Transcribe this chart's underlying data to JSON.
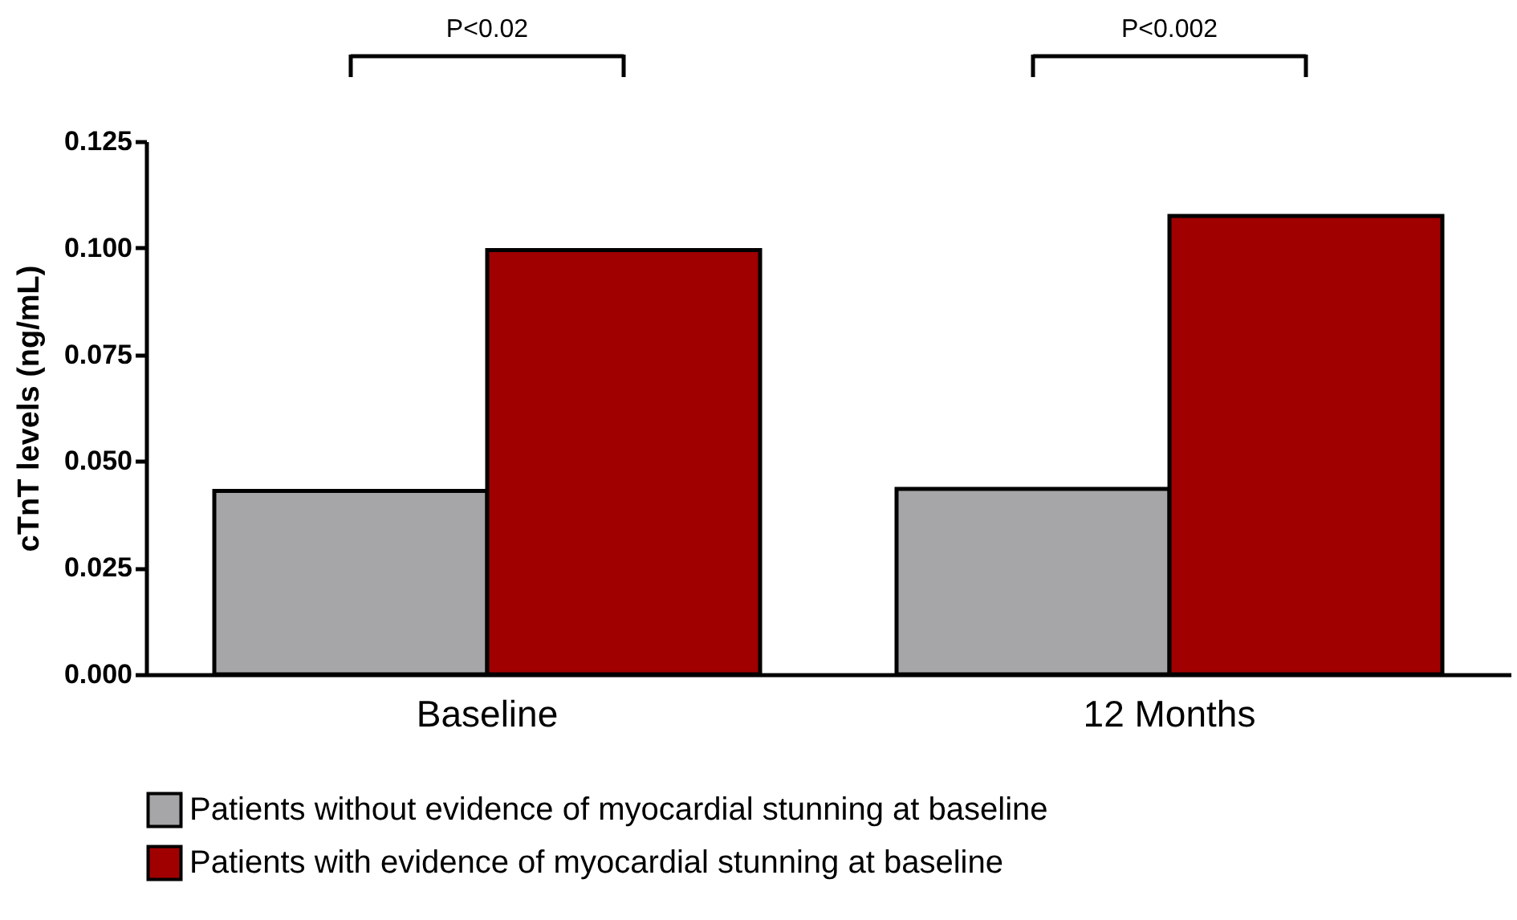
{
  "chart_data": {
    "type": "bar",
    "ylabel": "cTnT levels (ng/mL)",
    "categories": [
      "Baseline",
      "12 Months"
    ],
    "series": [
      {
        "name": "Patients without evidence of myocardial stunning at baseline",
        "color": "#a6a6a8",
        "values": [
          0.043,
          0.0435
        ]
      },
      {
        "name": "Patients with evidence of myocardial stunning at baseline",
        "color": "#a00000",
        "values": [
          0.0995,
          0.1075
        ]
      }
    ],
    "ylim": [
      0,
      0.125
    ],
    "yticks": [
      {
        "value": 0,
        "label": "0.000"
      },
      {
        "value": 0.025,
        "label": "0.025"
      },
      {
        "value": 0.05,
        "label": "0.050"
      },
      {
        "value": 0.075,
        "label": "0.075"
      },
      {
        "value": 0.1,
        "label": "0.100"
      },
      {
        "value": 0.125,
        "label": "0.125"
      }
    ],
    "annotations": [
      "P<0.02",
      "P<0.002"
    ],
    "legend": "bottom",
    "grid": false
  }
}
